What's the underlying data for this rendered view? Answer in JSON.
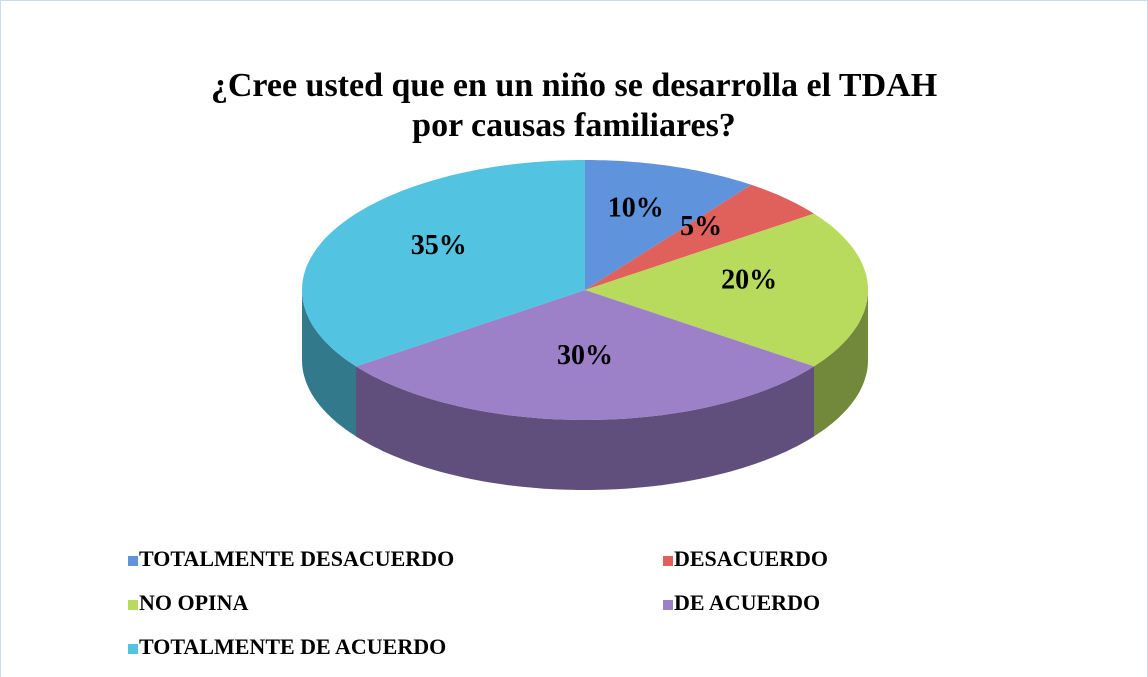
{
  "chart_data": {
    "type": "pie",
    "title": "¿Cree usted que en un niño se desarrolla el TDAH por causas familiares?",
    "categories": [
      "TOTALMENTE DESACUERDO",
      "DESACUERDO",
      "NO OPINA",
      "DE ACUERDO",
      "TOTALMENTE DE ACUERDO"
    ],
    "values": [
      10,
      5,
      20,
      30,
      35
    ],
    "value_labels": [
      "10%",
      "5%",
      "20%",
      "30%",
      "35%"
    ],
    "colors": [
      "#5f93dc",
      "#e0605c",
      "#b8db5e",
      "#9c80c8",
      "#52c3e0"
    ],
    "legend": "bottom"
  }
}
